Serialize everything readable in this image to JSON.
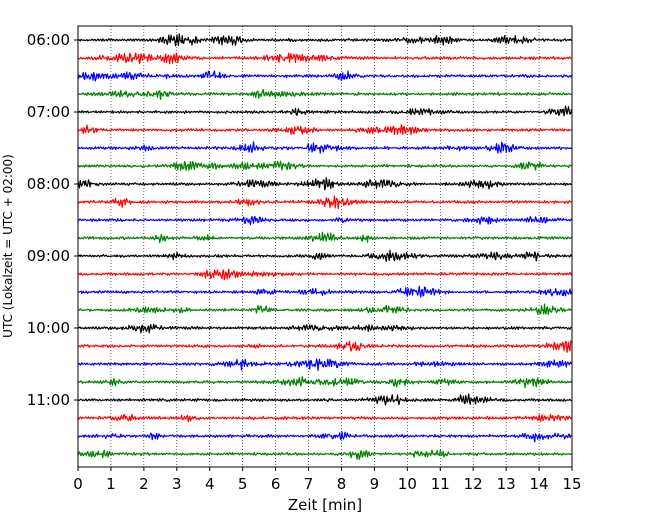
{
  "chart_data": {
    "type": "line",
    "title": "",
    "xlabel": "Zeit  [min]",
    "ylabel": "UTC (Lokalzeit = UTC + 02:00)",
    "xlim": [
      0,
      15
    ],
    "x_ticks": [
      "0",
      "1",
      "2",
      "3",
      "4",
      "5",
      "6",
      "7",
      "8",
      "9",
      "10",
      "11",
      "12",
      "13",
      "14",
      "15"
    ],
    "y_ticks": [
      "06:00",
      "07:00",
      "08:00",
      "09:00",
      "10:00",
      "11:00"
    ],
    "start_time": "06:00",
    "trace_interval_minutes": 15,
    "trace_count": 24,
    "trace_colors": [
      "#000000",
      "#ff0000",
      "#0000ff",
      "#008000"
    ],
    "grid": "vertical dotted lines at each minute",
    "description": "Seismic helicorder plot: 24 continuous 15-minute traces from 06:00 to 11:45 UTC, colored black, red, blue, green in rotation"
  }
}
